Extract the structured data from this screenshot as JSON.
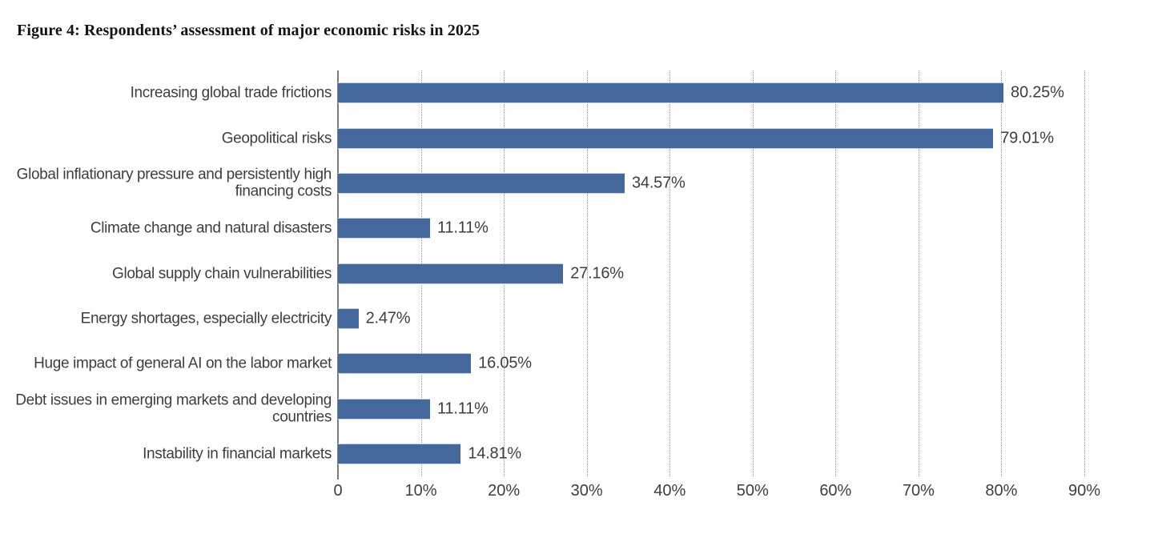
{
  "figure": {
    "title": "Figure 4: Respondents’ assessment of major economic risks in 2025"
  },
  "chart_data": {
    "type": "bar",
    "orientation": "horizontal",
    "title": "Figure 4: Respondents’ assessment of major economic risks in 2025",
    "xlabel": "",
    "ylabel": "",
    "xlim": [
      0,
      90
    ],
    "grid": "vertical-dotted",
    "legend": false,
    "bar_color": "#44689b",
    "categories": [
      "Increasing global trade frictions",
      "Geopolitical risks",
      "Global inflationary pressure and persistently high financing costs",
      "Climate change and natural disasters",
      "Global supply chain vulnerabilities",
      "Energy shortages, especially electricity",
      "Huge impact of general AI on the labor market",
      "Debt issues in emerging markets and developing countries",
      "Instability in financial markets"
    ],
    "values": [
      80.25,
      79.01,
      34.57,
      11.11,
      27.16,
      2.47,
      16.05,
      11.11,
      14.81
    ],
    "value_labels": [
      "80.25%",
      "79.01%",
      "34.57%",
      "11.11%",
      "27.16%",
      "2.47%",
      "16.05%",
      "11.11%",
      "14.81%"
    ],
    "x_tick_values": [
      0,
      10,
      20,
      30,
      40,
      50,
      60,
      70,
      80,
      90
    ],
    "x_tick_labels": [
      "0",
      "10%",
      "20%",
      "30%",
      "40%",
      "50%",
      "60%",
      "70%",
      "80%",
      "90%"
    ]
  }
}
